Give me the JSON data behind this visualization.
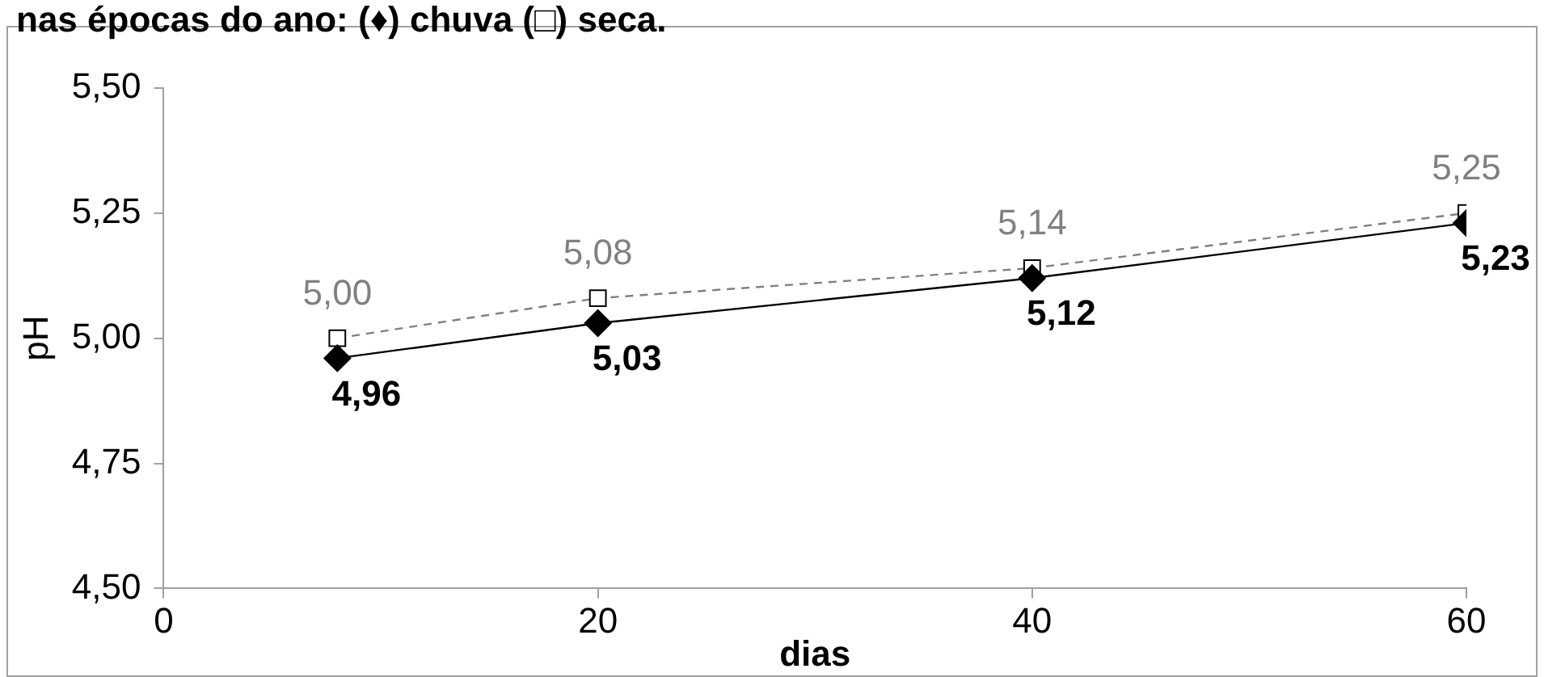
{
  "chart_data": {
    "type": "line",
    "title": "nas épocas do ano: (♦) chuva (□) seca.",
    "xlabel": "dias",
    "ylabel": "pH",
    "xlim": [
      0,
      60
    ],
    "xticks": [
      0,
      20,
      40,
      60
    ],
    "ylim": [
      4.5,
      5.5
    ],
    "yticks": [
      {
        "value": 4.5,
        "label": "4,50"
      },
      {
        "value": 4.75,
        "label": "4,75"
      },
      {
        "value": 5,
        "label": "5,00"
      },
      {
        "value": 5.25,
        "label": "5,25"
      },
      {
        "value": 5.5,
        "label": "5,50"
      }
    ],
    "x": [
      8,
      20,
      40,
      60
    ],
    "grid": false,
    "legend": false,
    "series": [
      {
        "color": "#000000",
        "values": [
          4.96,
          5.03,
          5.12,
          5.23
        ],
        "marker": "diamond",
        "line_style": "solid",
        "value_labels": [
          "4,96",
          "5,03",
          "5,12",
          "5,23"
        ]
      },
      {
        "color": "#808080",
        "values": [
          5.0,
          5.08,
          5.14,
          5.25
        ],
        "marker": "square",
        "line_style": "dashed",
        "value_labels": [
          "5,00",
          "5,08",
          "5,14",
          "5,25"
        ]
      }
    ]
  }
}
